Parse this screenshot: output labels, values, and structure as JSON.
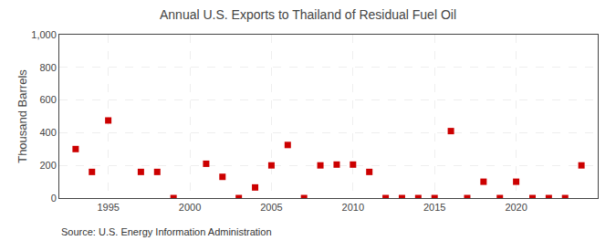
{
  "chart_data": {
    "type": "scatter",
    "title": "Annual U.S. Exports to Thailand of Residual Fuel Oil",
    "ylabel": "Thousand Barrels",
    "annotations": [
      "Source: U.S. Energy Information Administration"
    ],
    "x": [
      1993,
      1994,
      1995,
      1997,
      1998,
      1999,
      2001,
      2002,
      2003,
      2004,
      2005,
      2006,
      2007,
      2008,
      2009,
      2010,
      2011,
      2012,
      2013,
      2014,
      2015,
      2016,
      2017,
      2018,
      2019,
      2020,
      2021,
      2022,
      2023,
      2024
    ],
    "values": [
      300,
      160,
      475,
      160,
      160,
      0,
      210,
      130,
      0,
      65,
      200,
      325,
      0,
      200,
      205,
      205,
      160,
      0,
      0,
      0,
      0,
      410,
      0,
      100,
      0,
      100,
      0,
      0,
      0,
      200
    ],
    "color": "#cc0000",
    "marker": "square",
    "xlim": [
      1992,
      2025
    ],
    "xticks": [
      1995,
      2000,
      2005,
      2010,
      2015,
      2020
    ],
    "ylim": [
      0,
      1000
    ],
    "yticks": [
      0,
      200,
      400,
      600,
      800,
      {
        "value": 1000,
        "label": "1,000"
      }
    ],
    "grid": true
  }
}
